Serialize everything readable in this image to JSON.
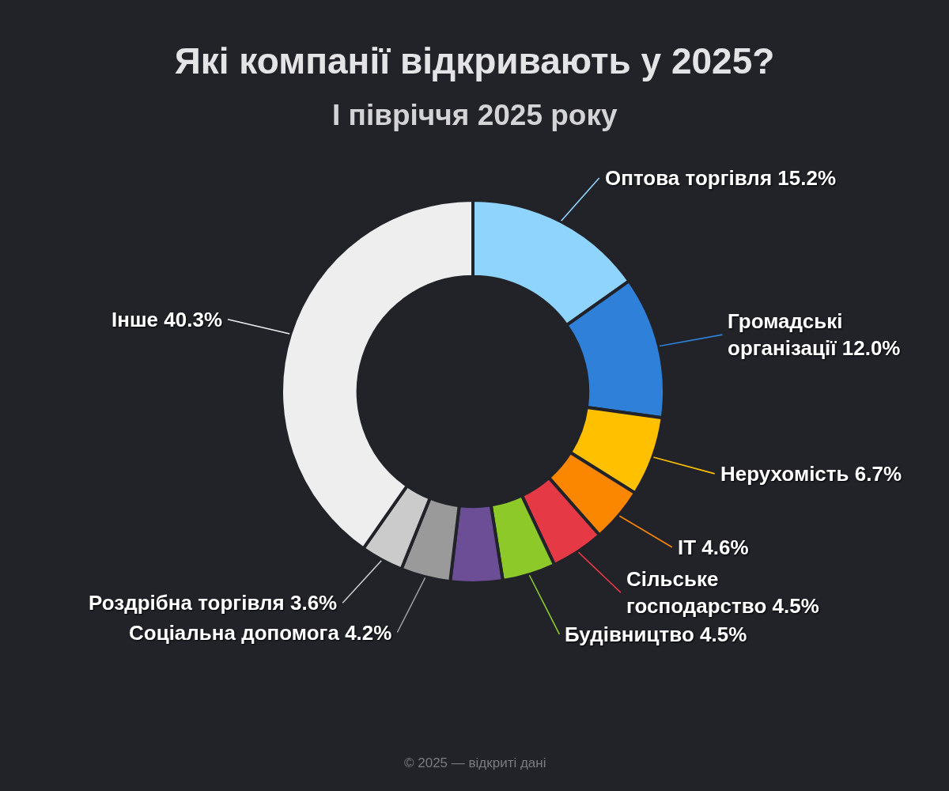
{
  "chart_data": {
    "type": "donut",
    "title": "Які компанії відкривають у 2025?",
    "subtitle": "І півріччя 2025 року",
    "categories": [
      "Оптова торгівля",
      "Громадські організації",
      "Нерухомість",
      "IT",
      "Сільське господарство",
      "Будівництво",
      null,
      "Соціальна допомога",
      "Роздрібна торгівля",
      "Інше"
    ],
    "values": [
      15.2,
      12.0,
      6.7,
      4.6,
      4.5,
      4.5,
      4.4,
      4.2,
      3.6,
      40.3
    ],
    "value_labels": [
      "15.2%",
      "12.0%",
      "6.7%",
      "4.6%",
      "4.5%",
      "4.5%",
      null,
      "4.2%",
      "3.6%",
      "40.3%"
    ],
    "colors": [
      "#8fd4fd",
      "#2e80d8",
      "#ffc000",
      "#fb8600",
      "#e63946",
      "#8cc929",
      "#6b4e96",
      "#9a9a9a",
      "#cbcbcb",
      "#eeeeee"
    ],
    "annotations": [
      "© 2025 — відкриті дані"
    ]
  }
}
